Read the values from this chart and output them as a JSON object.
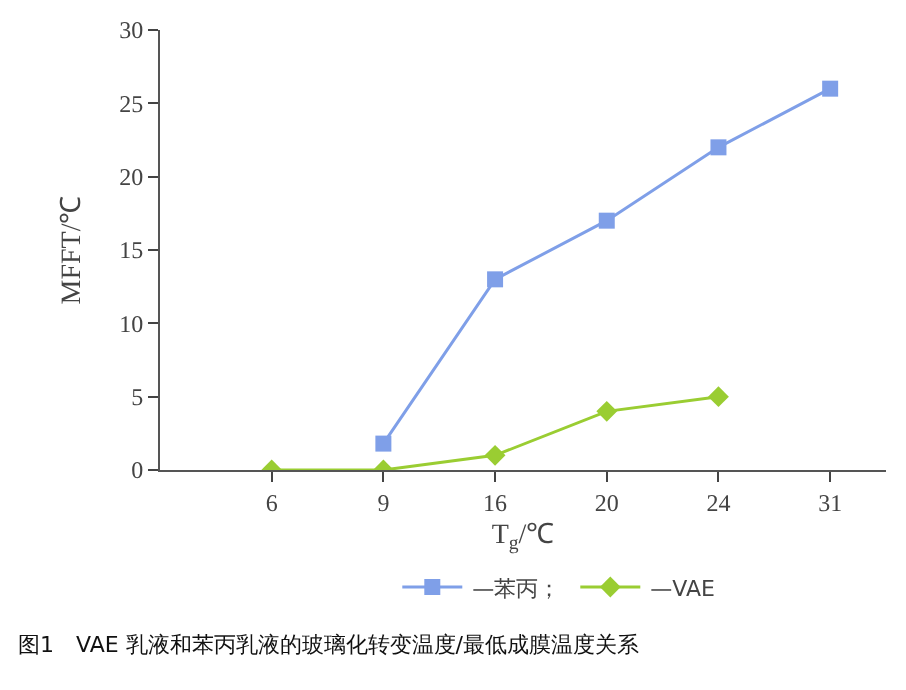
{
  "chart_data": {
    "type": "line",
    "xlabel": "T$_{g}$/℃",
    "ylabel": "MFFT/℃",
    "categories": [
      "6",
      "9",
      "16",
      "20",
      "24",
      "31"
    ],
    "series": [
      {
        "name": "—苯丙；",
        "color": "#7f9fe8",
        "marker": "square",
        "values": [
          null,
          1.8,
          13,
          17,
          22,
          26
        ]
      },
      {
        "name": "—VAE",
        "color": "#9acd32",
        "marker": "diamond",
        "values": [
          0,
          0,
          1,
          4,
          5,
          null
        ]
      }
    ],
    "ylim": [
      0,
      30
    ],
    "yticks": [
      0,
      5,
      10,
      15,
      20,
      25,
      30
    ],
    "legend": "bottom",
    "annotations": [
      "图1　VAE 乳液和苯丙乳液的玻璃化转变温度/最低成膜温度关系"
    ]
  }
}
